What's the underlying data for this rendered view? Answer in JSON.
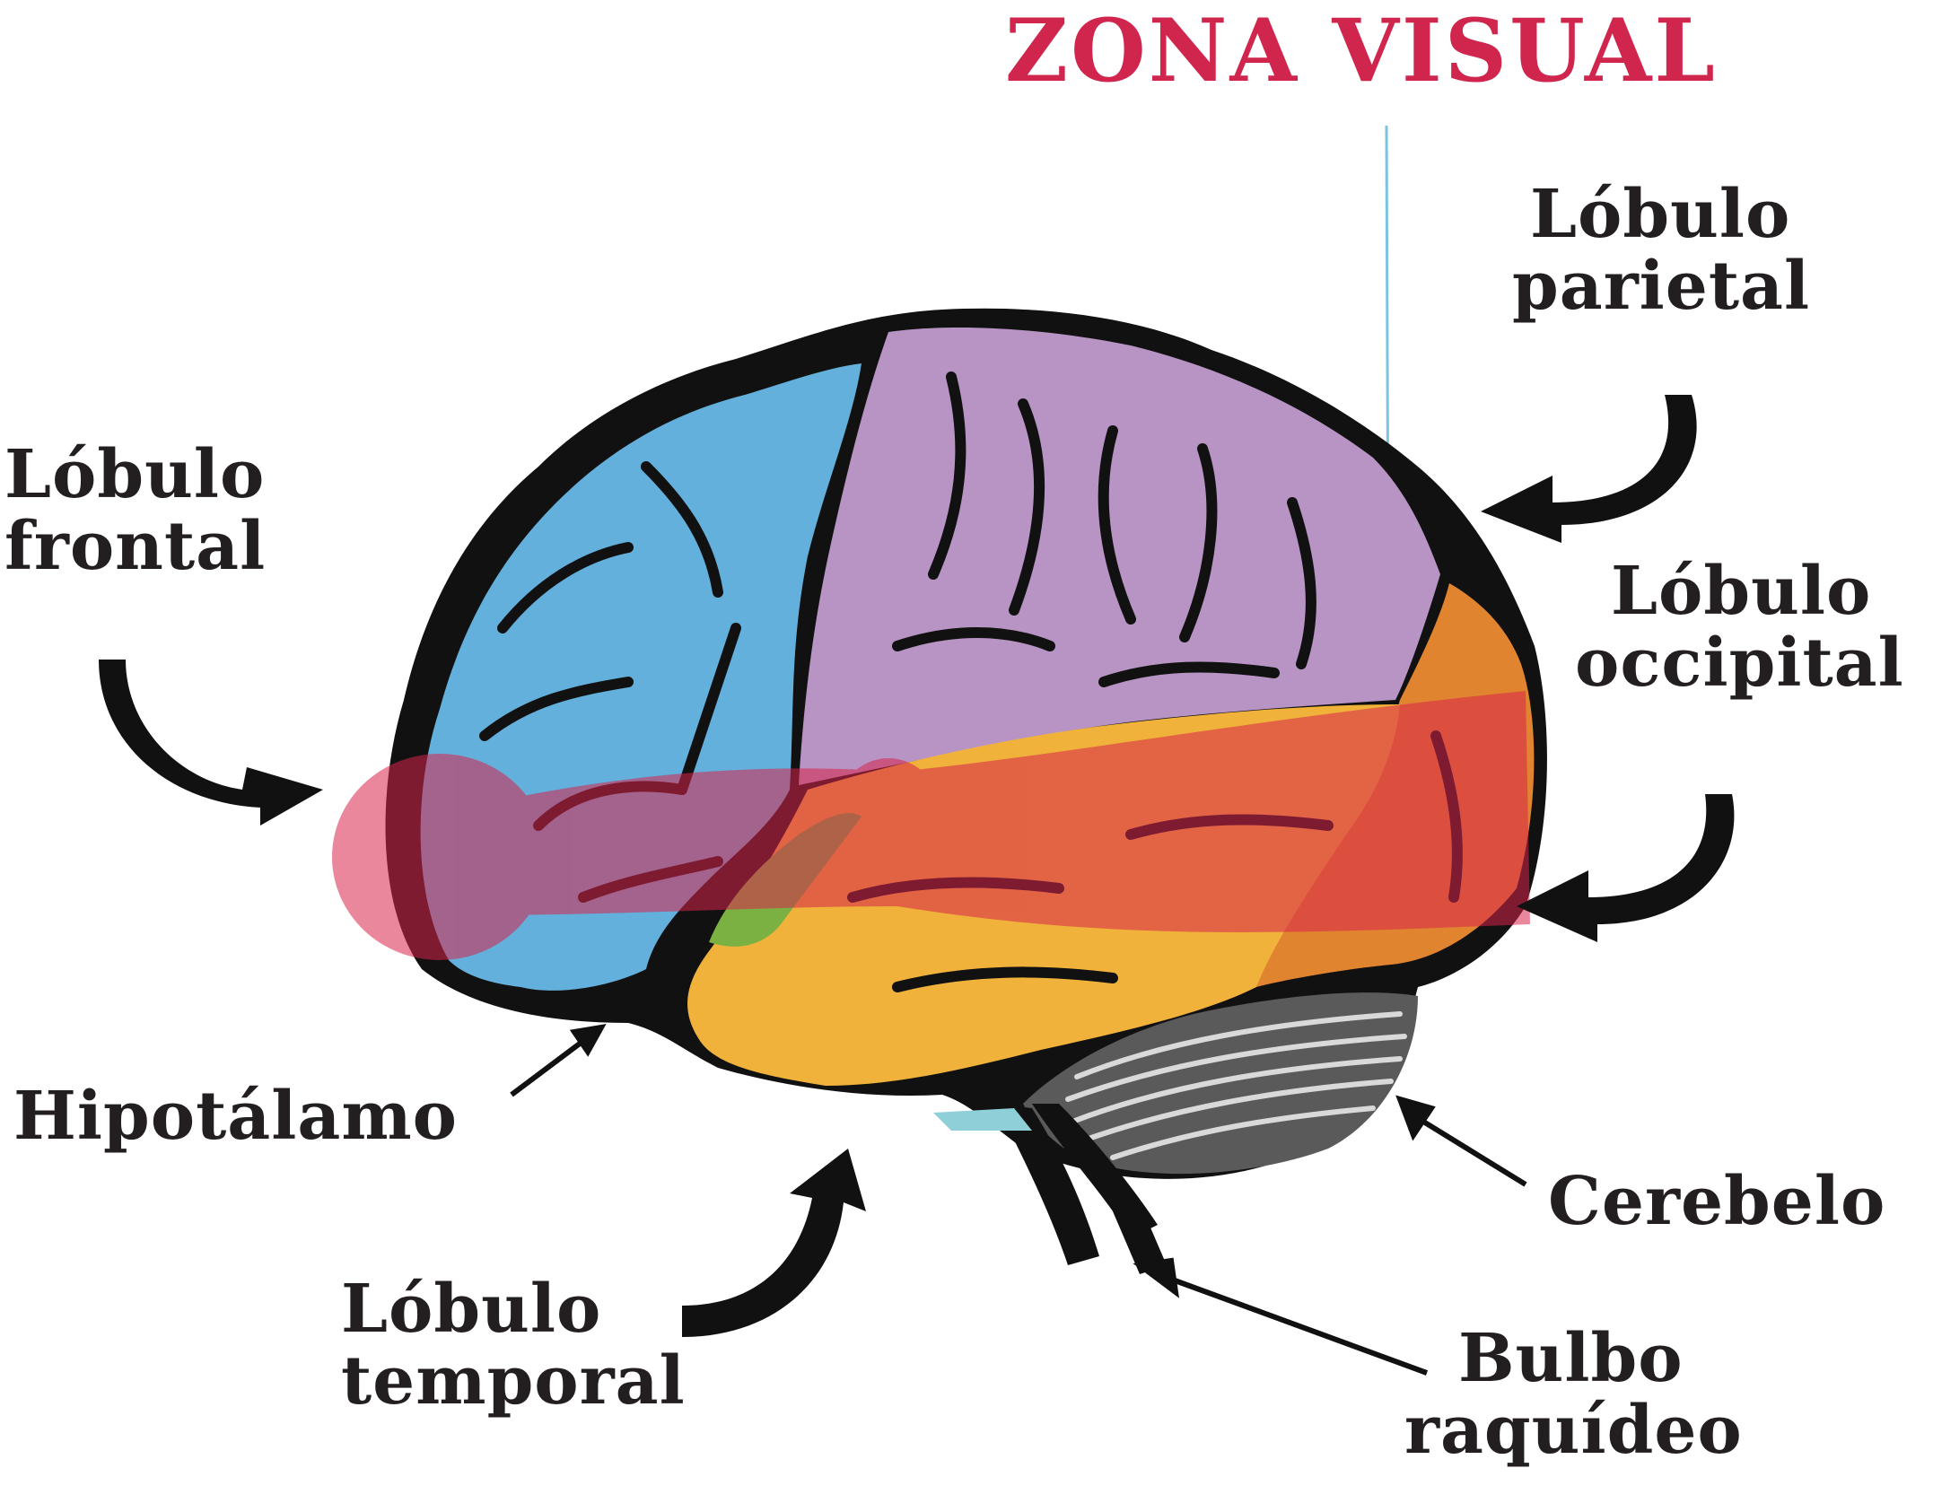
{
  "title": "ZONA VISUAL",
  "labels": {
    "frontal": [
      "Lóbulo",
      "frontal"
    ],
    "parietal": [
      "Lóbulo",
      "parietal"
    ],
    "occipital": [
      "Lóbulo",
      "occipital"
    ],
    "hipotalamo": "Hipotálamo",
    "cerebelo": "Cerebelo",
    "temporal": [
      "Lóbulo",
      "temporal"
    ],
    "bulbo": [
      "Bulbo",
      "raquídeo"
    ]
  },
  "colors": {
    "title": "#d0264e",
    "frontal": "#62b0db",
    "parietal": "#b794c3",
    "occipital": "#e0842f",
    "temporal": "#f0b23a",
    "hypothalamus": "#7bb043",
    "visual_pathway": "#d8244c",
    "outline": "#111111"
  },
  "icons": {
    "arrow": "curved-arrow-icon",
    "pointer": "straight-arrow-icon"
  }
}
